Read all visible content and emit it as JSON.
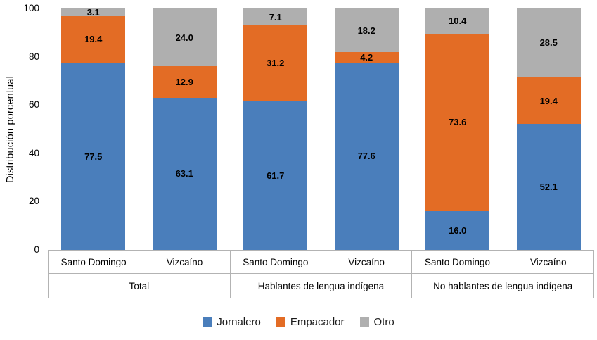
{
  "chart_data": {
    "type": "bar",
    "subtype": "stacked-100-percent",
    "title": "",
    "xlabel": "",
    "ylabel": "Distribución porcentual",
    "ylim": [
      0,
      100
    ],
    "yticks": [
      0,
      20,
      40,
      60,
      80,
      100
    ],
    "grid": false,
    "legend_position": "bottom",
    "series_order": [
      "Jornalero",
      "Empacador",
      "Otro"
    ],
    "colors": {
      "Jornalero": "#4A7EBB",
      "Empacador": "#E36C25",
      "Otro": "#AFAFAF"
    },
    "groups": [
      {
        "label": "Total",
        "bars": [
          {
            "label": "Santo Domingo",
            "segments": [
              {
                "series": "Jornalero",
                "value": 77.5,
                "label": "77.5"
              },
              {
                "series": "Empacador",
                "value": 19.4,
                "label": "19.4"
              },
              {
                "series": "Otro",
                "value": 3.1,
                "label": "3.1"
              }
            ]
          },
          {
            "label": "Vizcaíno",
            "segments": [
              {
                "series": "Jornalero",
                "value": 63.1,
                "label": "63.1"
              },
              {
                "series": "Empacador",
                "value": 12.9,
                "label": "12.9"
              },
              {
                "series": "Otro",
                "value": 24.0,
                "label": "24.0"
              }
            ]
          }
        ]
      },
      {
        "label": "Hablantes de lengua indígena",
        "bars": [
          {
            "label": "Santo Domingo",
            "segments": [
              {
                "series": "Jornalero",
                "value": 61.7,
                "label": "61.7"
              },
              {
                "series": "Empacador",
                "value": 31.2,
                "label": "31.2"
              },
              {
                "series": "Otro",
                "value": 7.1,
                "label": "7.1"
              }
            ]
          },
          {
            "label": "Vizcaíno",
            "segments": [
              {
                "series": "Jornalero",
                "value": 77.6,
                "label": "77.6"
              },
              {
                "series": "Empacador",
                "value": 4.2,
                "label": "4.2"
              },
              {
                "series": "Otro",
                "value": 18.2,
                "label": "18.2"
              }
            ]
          }
        ]
      },
      {
        "label": "No hablantes de lengua indígena",
        "bars": [
          {
            "label": "Santo Domingo",
            "segments": [
              {
                "series": "Jornalero",
                "value": 16.0,
                "label": "16.0"
              },
              {
                "series": "Empacador",
                "value": 73.6,
                "label": "73.6"
              },
              {
                "series": "Otro",
                "value": 10.4,
                "label": "10.4"
              }
            ]
          },
          {
            "label": "Vizcaíno",
            "segments": [
              {
                "series": "Jornalero",
                "value": 52.1,
                "label": "52.1"
              },
              {
                "series": "Empacador",
                "value": 19.4,
                "label": "19.4"
              },
              {
                "series": "Otro",
                "value": 28.5,
                "label": "28.5"
              }
            ]
          }
        ]
      }
    ],
    "legend": [
      {
        "name": "Jornalero",
        "color": "#4A7EBB"
      },
      {
        "name": "Empacador",
        "color": "#E36C25"
      },
      {
        "name": "Otro",
        "color": "#AFAFAF"
      }
    ]
  }
}
